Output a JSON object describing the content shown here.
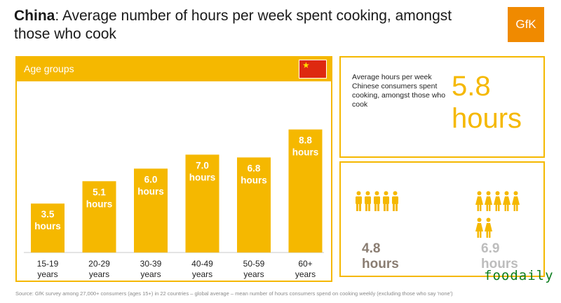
{
  "title": {
    "bold": "China",
    "rest": ": Average number of hours per week spent cooking, amongst those who cook"
  },
  "logo": {
    "text": "GfK"
  },
  "chart_data": {
    "type": "bar",
    "title": "Age groups",
    "categories": [
      "15-19",
      "20-29",
      "30-39",
      "40-49",
      "50-59",
      "60+"
    ],
    "category_sublabel": "years",
    "values": [
      3.5,
      5.1,
      6.0,
      7.0,
      6.8,
      8.8
    ],
    "value_unit": "hours",
    "ylim": [
      0,
      10
    ],
    "grid": false,
    "bar_color": "#f5b800"
  },
  "stat": {
    "description": "Average hours per week Chinese consumers spent cooking, amongst those who cook",
    "value": "5.8",
    "unit": "hours"
  },
  "groups": [
    {
      "value": "4.8",
      "unit": "hours",
      "icon": "male-figure-icon",
      "color": "#8a7d72"
    },
    {
      "value": "6.9",
      "unit": "hours",
      "icon": "female-figure-icon",
      "color": "#bdbdbd"
    }
  ],
  "source": "Source: GfK survey among 27,000+ consumers (ages 15+) in 22 countries – global average – mean number of hours consumers spend  on cooking weekly (excluding those who say 'none')",
  "watermark": "foodaily",
  "colors": {
    "accent": "#f5b800",
    "brand": "#f08a00"
  }
}
